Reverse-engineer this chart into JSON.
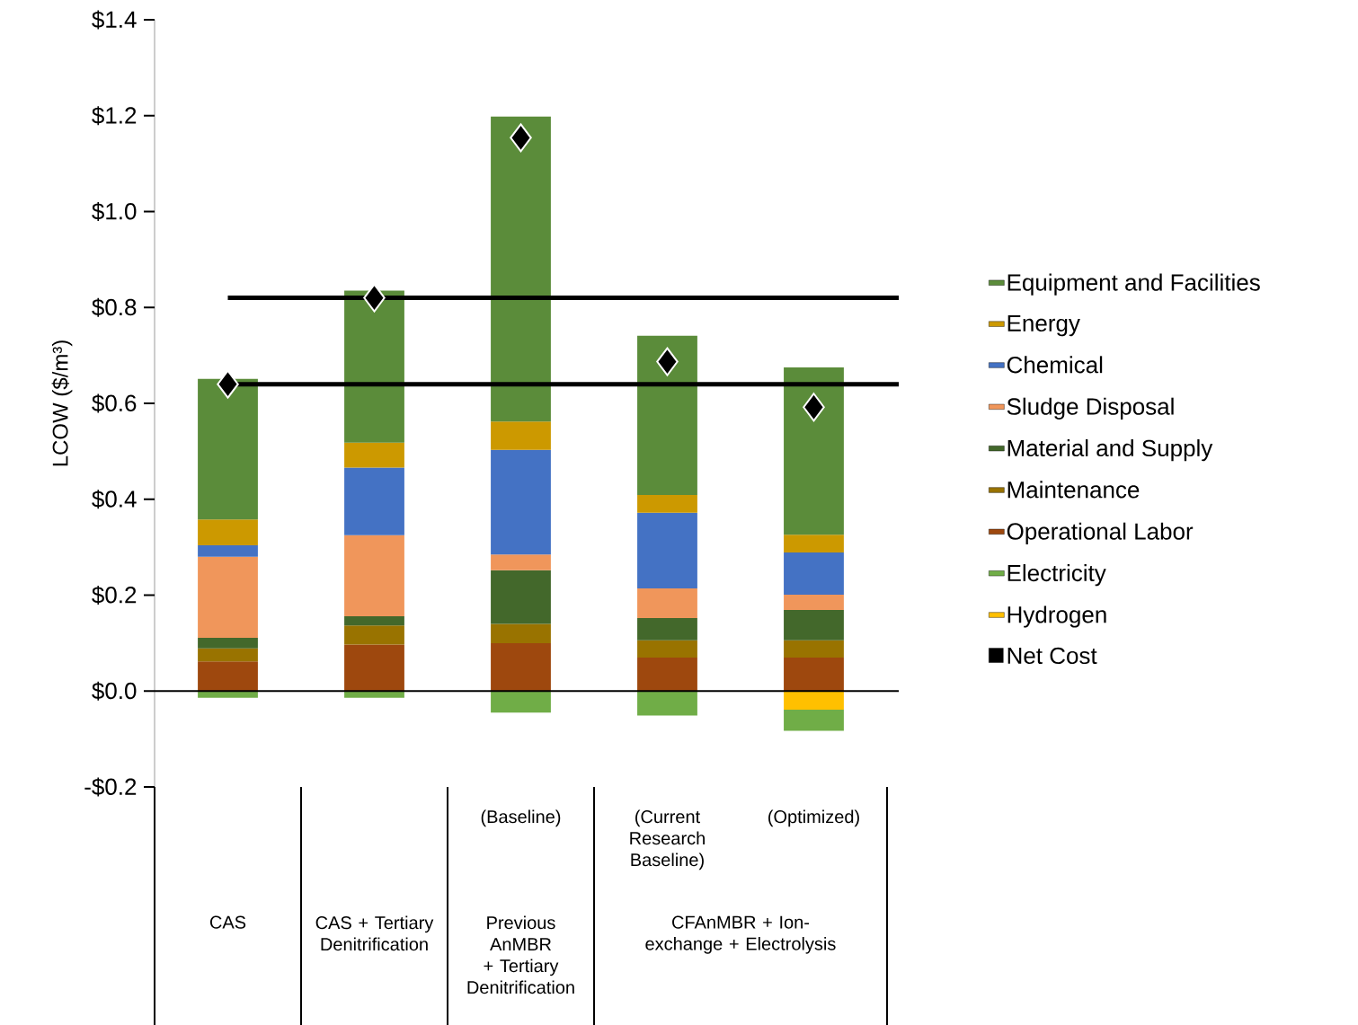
{
  "chart_data": {
    "type": "bar",
    "stacked": true,
    "ylabel": "LCOW ($/m³)",
    "categories": [
      "CAS",
      "CAS + Tertiary Denitrification",
      "(Baseline)",
      "(Current Research Baseline)",
      "(Optimized)"
    ],
    "annotations": [
      "Previous AnMBR + Tertiary Denitrification",
      "CFAnMBR + Ion-exchange + Electrolysis"
    ],
    "ylim": [
      -0.2,
      1.4
    ],
    "yticks": [
      {
        "value": -0.2,
        "label": "-$0.2"
      },
      {
        "value": 0,
        "label": "$0.0"
      },
      {
        "value": 0.2,
        "label": "$0.2"
      },
      {
        "value": 0.4,
        "label": "$0.4"
      },
      {
        "value": 0.6,
        "label": "$0.6"
      },
      {
        "value": 0.8,
        "label": "$0.8"
      },
      {
        "value": 1.0,
        "label": "$1.0"
      },
      {
        "value": 1.2,
        "label": "$1.2"
      },
      {
        "value": 1.4,
        "label": "$1.4"
      }
    ],
    "series": [
      {
        "name": "Operational Labor",
        "color": "#9e480e",
        "values": [
          0.062,
          0.097,
          0.1,
          0.07,
          0.07
        ]
      },
      {
        "name": "Maintenance",
        "color": "#997300",
        "values": [
          0.027,
          0.04,
          0.04,
          0.036,
          0.036
        ]
      },
      {
        "name": "Material and Supply",
        "color": "#43682b",
        "values": [
          0.022,
          0.019,
          0.112,
          0.046,
          0.063
        ]
      },
      {
        "name": "Sludge Disposal",
        "color": "#f0965b",
        "values": [
          0.169,
          0.169,
          0.033,
          0.062,
          0.032
        ]
      },
      {
        "name": "Chemical",
        "color": "#4472c4",
        "values": [
          0.024,
          0.141,
          0.218,
          0.158,
          0.088
        ]
      },
      {
        "name": "Energy",
        "color": "#cc9900",
        "values": [
          0.054,
          0.052,
          0.059,
          0.037,
          0.037
        ]
      },
      {
        "name": "Equipment and Facilities",
        "color": "#5b8c3a",
        "values": [
          0.293,
          0.317,
          0.636,
          0.332,
          0.349
        ]
      },
      {
        "name": "Hydrogen",
        "color": "#ffc000",
        "values": [
          null,
          null,
          null,
          null,
          -0.039
        ]
      },
      {
        "name": "Electricity",
        "color": "#70ad47",
        "values": [
          -0.014,
          -0.014,
          -0.045,
          -0.051,
          -0.044
        ]
      },
      {
        "name": "Net Cost",
        "type": "scatter",
        "marker": "diamond",
        "color": "#000000",
        "values": [
          0.64,
          0.82,
          1.154,
          0.687,
          0.592
        ]
      }
    ],
    "ref_lines": [
      {
        "axis": "y",
        "value": 0.82,
        "color": "#000000",
        "line_style": "solid"
      },
      {
        "axis": "y",
        "value": 0.64,
        "color": "#000000",
        "line_style": "solid"
      }
    ],
    "legend": "right"
  }
}
